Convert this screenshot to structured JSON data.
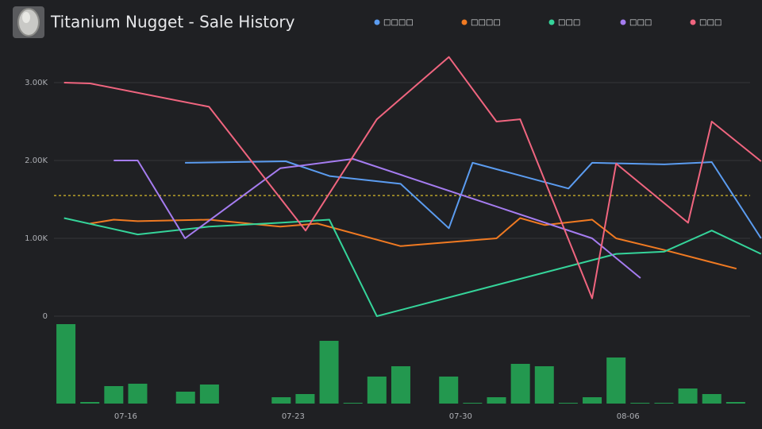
{
  "chart_data": {
    "type": "line",
    "title": "Titanium Nugget - Sale History",
    "xlim": [
      13,
      42.6
    ],
    "xticks": [
      {
        "value": 16,
        "label": "07-16"
      },
      {
        "value": 23,
        "label": "07-23"
      },
      {
        "value": 30,
        "label": "07-30"
      },
      {
        "value": 37,
        "label": "08-06"
      }
    ],
    "ylim": [
      0,
      3600
    ],
    "yticks": [
      0,
      {
        "value": 1000,
        "label": "1.00K"
      },
      {
        "value": 2000,
        "label": "2.00K"
      },
      {
        "value": 3000,
        "label": "3.00K"
      }
    ],
    "grid": true,
    "average_line": {
      "value": 1550,
      "color": "#d4b82a"
    },
    "series": [
      {
        "name": "□□□□",
        "color": "#5b9cf0",
        "x": [
          18.48,
          22.69,
          24.52,
          27.49,
          29.51,
          30.5,
          34.51,
          35.5,
          38.52,
          40.5,
          42.56
        ],
        "values": [
          1970,
          1990,
          1800,
          1700,
          1130,
          1970,
          1640,
          1970,
          1950,
          1980,
          1000
        ]
      },
      {
        "name": "□□□□",
        "color": "#f07a22",
        "x": [
          14.51,
          15.5,
          16.5,
          19.48,
          22.46,
          24.01,
          27.49,
          31.5,
          32.49,
          33.52,
          35.5,
          36.5,
          38.52,
          41.53
        ],
        "values": [
          1190,
          1240,
          1220,
          1240,
          1150,
          1190,
          900,
          1000,
          1260,
          1170,
          1240,
          1000,
          850,
          610
        ]
      },
      {
        "name": "□□□",
        "color": "#35d49a",
        "x": [
          13.42,
          16.5,
          19.48,
          22.46,
          24.51,
          26.5,
          36.5,
          38.52,
          40.5,
          42.56
        ],
        "values": [
          1260,
          1050,
          1150,
          1200,
          1240,
          0,
          800,
          830,
          1100,
          800
        ]
      },
      {
        "name": "□□□",
        "color": "#a57cf0",
        "x": [
          15.5,
          16.5,
          18.48,
          22.46,
          25.5,
          35.5,
          37.52
        ],
        "values": [
          2000,
          2000,
          1000,
          1900,
          2020,
          1000,
          490
        ]
      },
      {
        "name": "□□□",
        "color": "#f0657f",
        "x": [
          13.42,
          14.51,
          19.48,
          23.52,
          26.5,
          29.51,
          31.5,
          32.49,
          35.5,
          36.5,
          39.51,
          40.5,
          42.56
        ],
        "values": [
          3000,
          2990,
          2690,
          1100,
          2530,
          3330,
          2500,
          2530,
          230,
          1960,
          1200,
          2500,
          1990
        ]
      }
    ],
    "volume": {
      "color": "#23984f",
      "ylim": [
        0,
        100
      ],
      "x": [
        13.5,
        14.5,
        15.5,
        16.5,
        17.5,
        18.5,
        19.5,
        20.5,
        21.5,
        22.5,
        23.5,
        24.5,
        25.5,
        26.5,
        27.5,
        28.5,
        29.5,
        30.5,
        31.5,
        32.5,
        33.5,
        34.5,
        35.5,
        36.5,
        37.5,
        38.5,
        39.5,
        40.5,
        41.5
      ],
      "values": [
        100,
        2,
        22,
        25,
        0,
        15,
        24,
        0,
        0,
        8,
        12,
        79,
        1,
        34,
        47,
        0,
        34,
        1,
        8,
        50,
        47,
        1,
        8,
        58,
        1,
        1,
        19,
        12,
        2
      ]
    }
  }
}
